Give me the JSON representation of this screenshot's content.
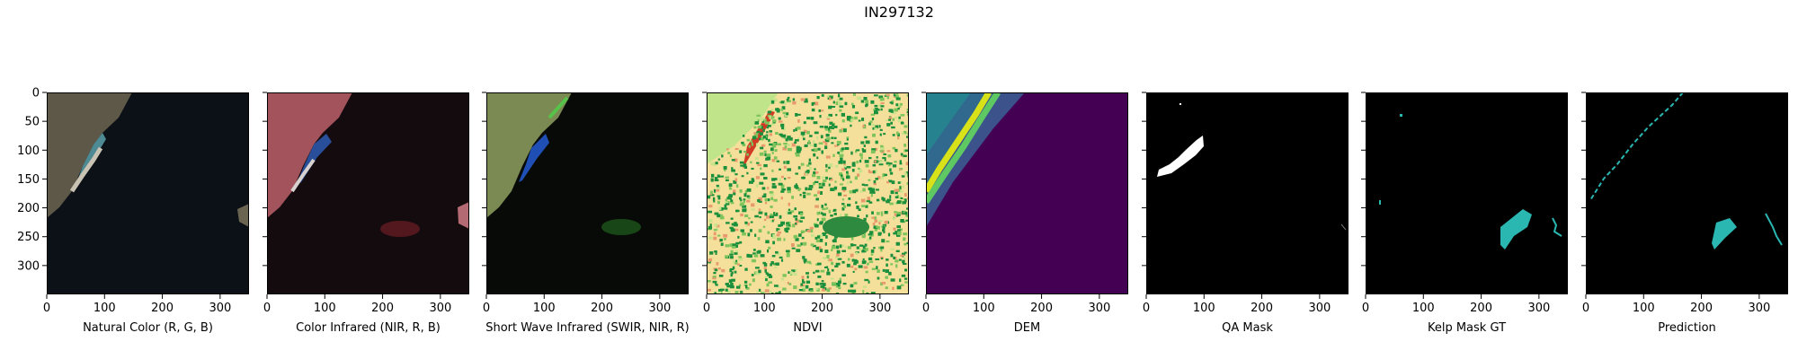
{
  "title": "IN297132",
  "y_ticks": [
    "0",
    "50",
    "100",
    "150",
    "200",
    "250",
    "300"
  ],
  "x_ticks": [
    "0",
    "100",
    "200",
    "300"
  ],
  "panels": [
    {
      "label": "Natural Color (R, G, B)",
      "kind": "natural"
    },
    {
      "label": "Color Infrared (NIR, R, B)",
      "kind": "infrared"
    },
    {
      "label": "Short Wave Infrared (SWIR, NIR, R)",
      "kind": "swir"
    },
    {
      "label": "NDVI",
      "kind": "ndvi"
    },
    {
      "label": "DEM",
      "kind": "dem"
    },
    {
      "label": "QA Mask",
      "kind": "qa"
    },
    {
      "label": "Kelp Mask GT",
      "kind": "gt"
    },
    {
      "label": "Prediction",
      "kind": "pred"
    }
  ],
  "colors": {
    "ocean_natural": "#0c1117",
    "land_natural": "#5d5847",
    "beach": "#c9c3b4",
    "ocean_infrared": "#140b0f",
    "land_infrared": "#a2535b",
    "water_blue": "#2a4f9a",
    "ocean_swir": "#070a06",
    "land_swir": "#7b8a52",
    "ndvi_low": "#f5e09b",
    "ndvi_high": "#1a8f3c",
    "ndvi_red": "#d13b25",
    "dem_low": "#440154",
    "dem_mid": "#21908d",
    "dem_high": "#d7e219",
    "mask_bg": "#000000",
    "mask_fg": "#ffffff",
    "kelp": "#2ab7b2"
  }
}
